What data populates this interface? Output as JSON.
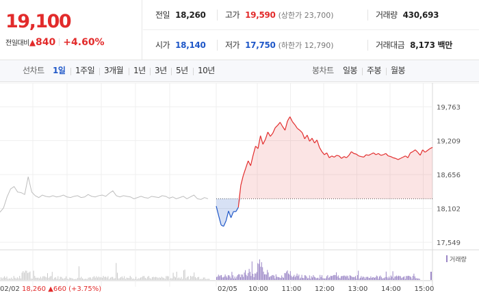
{
  "quote": {
    "price": "19,100",
    "change_label": "전일대비",
    "change_arrow": "▲",
    "change_value": "840",
    "change_percent": "+4.60%",
    "color_up": "#e22b2b",
    "color_down": "#2058c8"
  },
  "stats": {
    "prev_close": {
      "label": "전일",
      "value": "18,260"
    },
    "high": {
      "label": "고가",
      "value": "19,590",
      "sub": "(상한가 23,700)"
    },
    "volume": {
      "label": "거래량",
      "value": "430,693"
    },
    "open": {
      "label": "시가",
      "value": "18,140"
    },
    "low": {
      "label": "저가",
      "value": "17,750",
      "sub": "(하한가 12,790)"
    },
    "trade_value": {
      "label": "거래대금",
      "value": "8,173 백만"
    }
  },
  "tabs": {
    "line_label": "선차트",
    "periods": [
      "1일",
      "1주일",
      "3개월",
      "1년",
      "3년",
      "5년",
      "10년"
    ],
    "active_period": "1일",
    "candle_label": "봉차트",
    "candles": [
      "일봉",
      "주봉",
      "월봉"
    ]
  },
  "chart_data": {
    "type": "line",
    "y_ticks": [
      "19,763",
      "19,209",
      "18,656",
      "18,102",
      "17,549"
    ],
    "ylim": [
      17549,
      19763
    ],
    "baseline": 18260,
    "x_ticks": [
      "02/05",
      "10:00",
      "11:00",
      "12:00",
      "13:00",
      "14:00",
      "15:00"
    ],
    "volume_legend": "거래량",
    "footer_date": "02/02",
    "footer_price": "18,260",
    "footer_change": "▲660 (+3.75%)",
    "previous_day": {
      "date": "02/02",
      "values": [
        18040,
        18110,
        18290,
        18420,
        18460,
        18370,
        18360,
        18330,
        18620,
        18370,
        18310,
        18280,
        18320,
        18300,
        18290,
        18310,
        18290,
        18300,
        18320,
        18290,
        18280,
        18300,
        18310,
        18280,
        18290,
        18330,
        18300,
        18290,
        18310,
        18320,
        18300,
        18350,
        18390,
        18310,
        18290,
        18310,
        18300,
        18290,
        18260,
        18280,
        18300,
        18280,
        18270,
        18300,
        18290,
        18280,
        18310,
        18300,
        18270,
        18290,
        18260,
        18280,
        18300,
        18260,
        18290,
        18320,
        18260,
        18250,
        18280,
        18260
      ]
    },
    "today": {
      "date": "02/05",
      "values": [
        18140,
        17980,
        17830,
        17810,
        17900,
        18060,
        17950,
        18050,
        18050,
        18120,
        18480,
        18640,
        18760,
        18880,
        18800,
        18970,
        19120,
        19080,
        19290,
        19150,
        19230,
        19350,
        19280,
        19330,
        19420,
        19460,
        19510,
        19440,
        19380,
        19530,
        19600,
        19520,
        19470,
        19410,
        19380,
        19340,
        19240,
        19300,
        19200,
        19250,
        19170,
        19220,
        19100,
        19030,
        18980,
        19010,
        18930,
        18960,
        18940,
        18970,
        18960,
        18920,
        18950,
        18930,
        18970,
        19030,
        19000,
        18990,
        18960,
        18950,
        18940,
        18980,
        18970,
        18990,
        19010,
        18980,
        19000,
        18970,
        18980,
        19000,
        18960,
        18950,
        18930,
        18920,
        18900,
        18920,
        18940,
        18960,
        18930,
        19010,
        19030,
        19060,
        19020,
        18970,
        19060,
        19020,
        19050,
        19080,
        19100
      ]
    }
  }
}
